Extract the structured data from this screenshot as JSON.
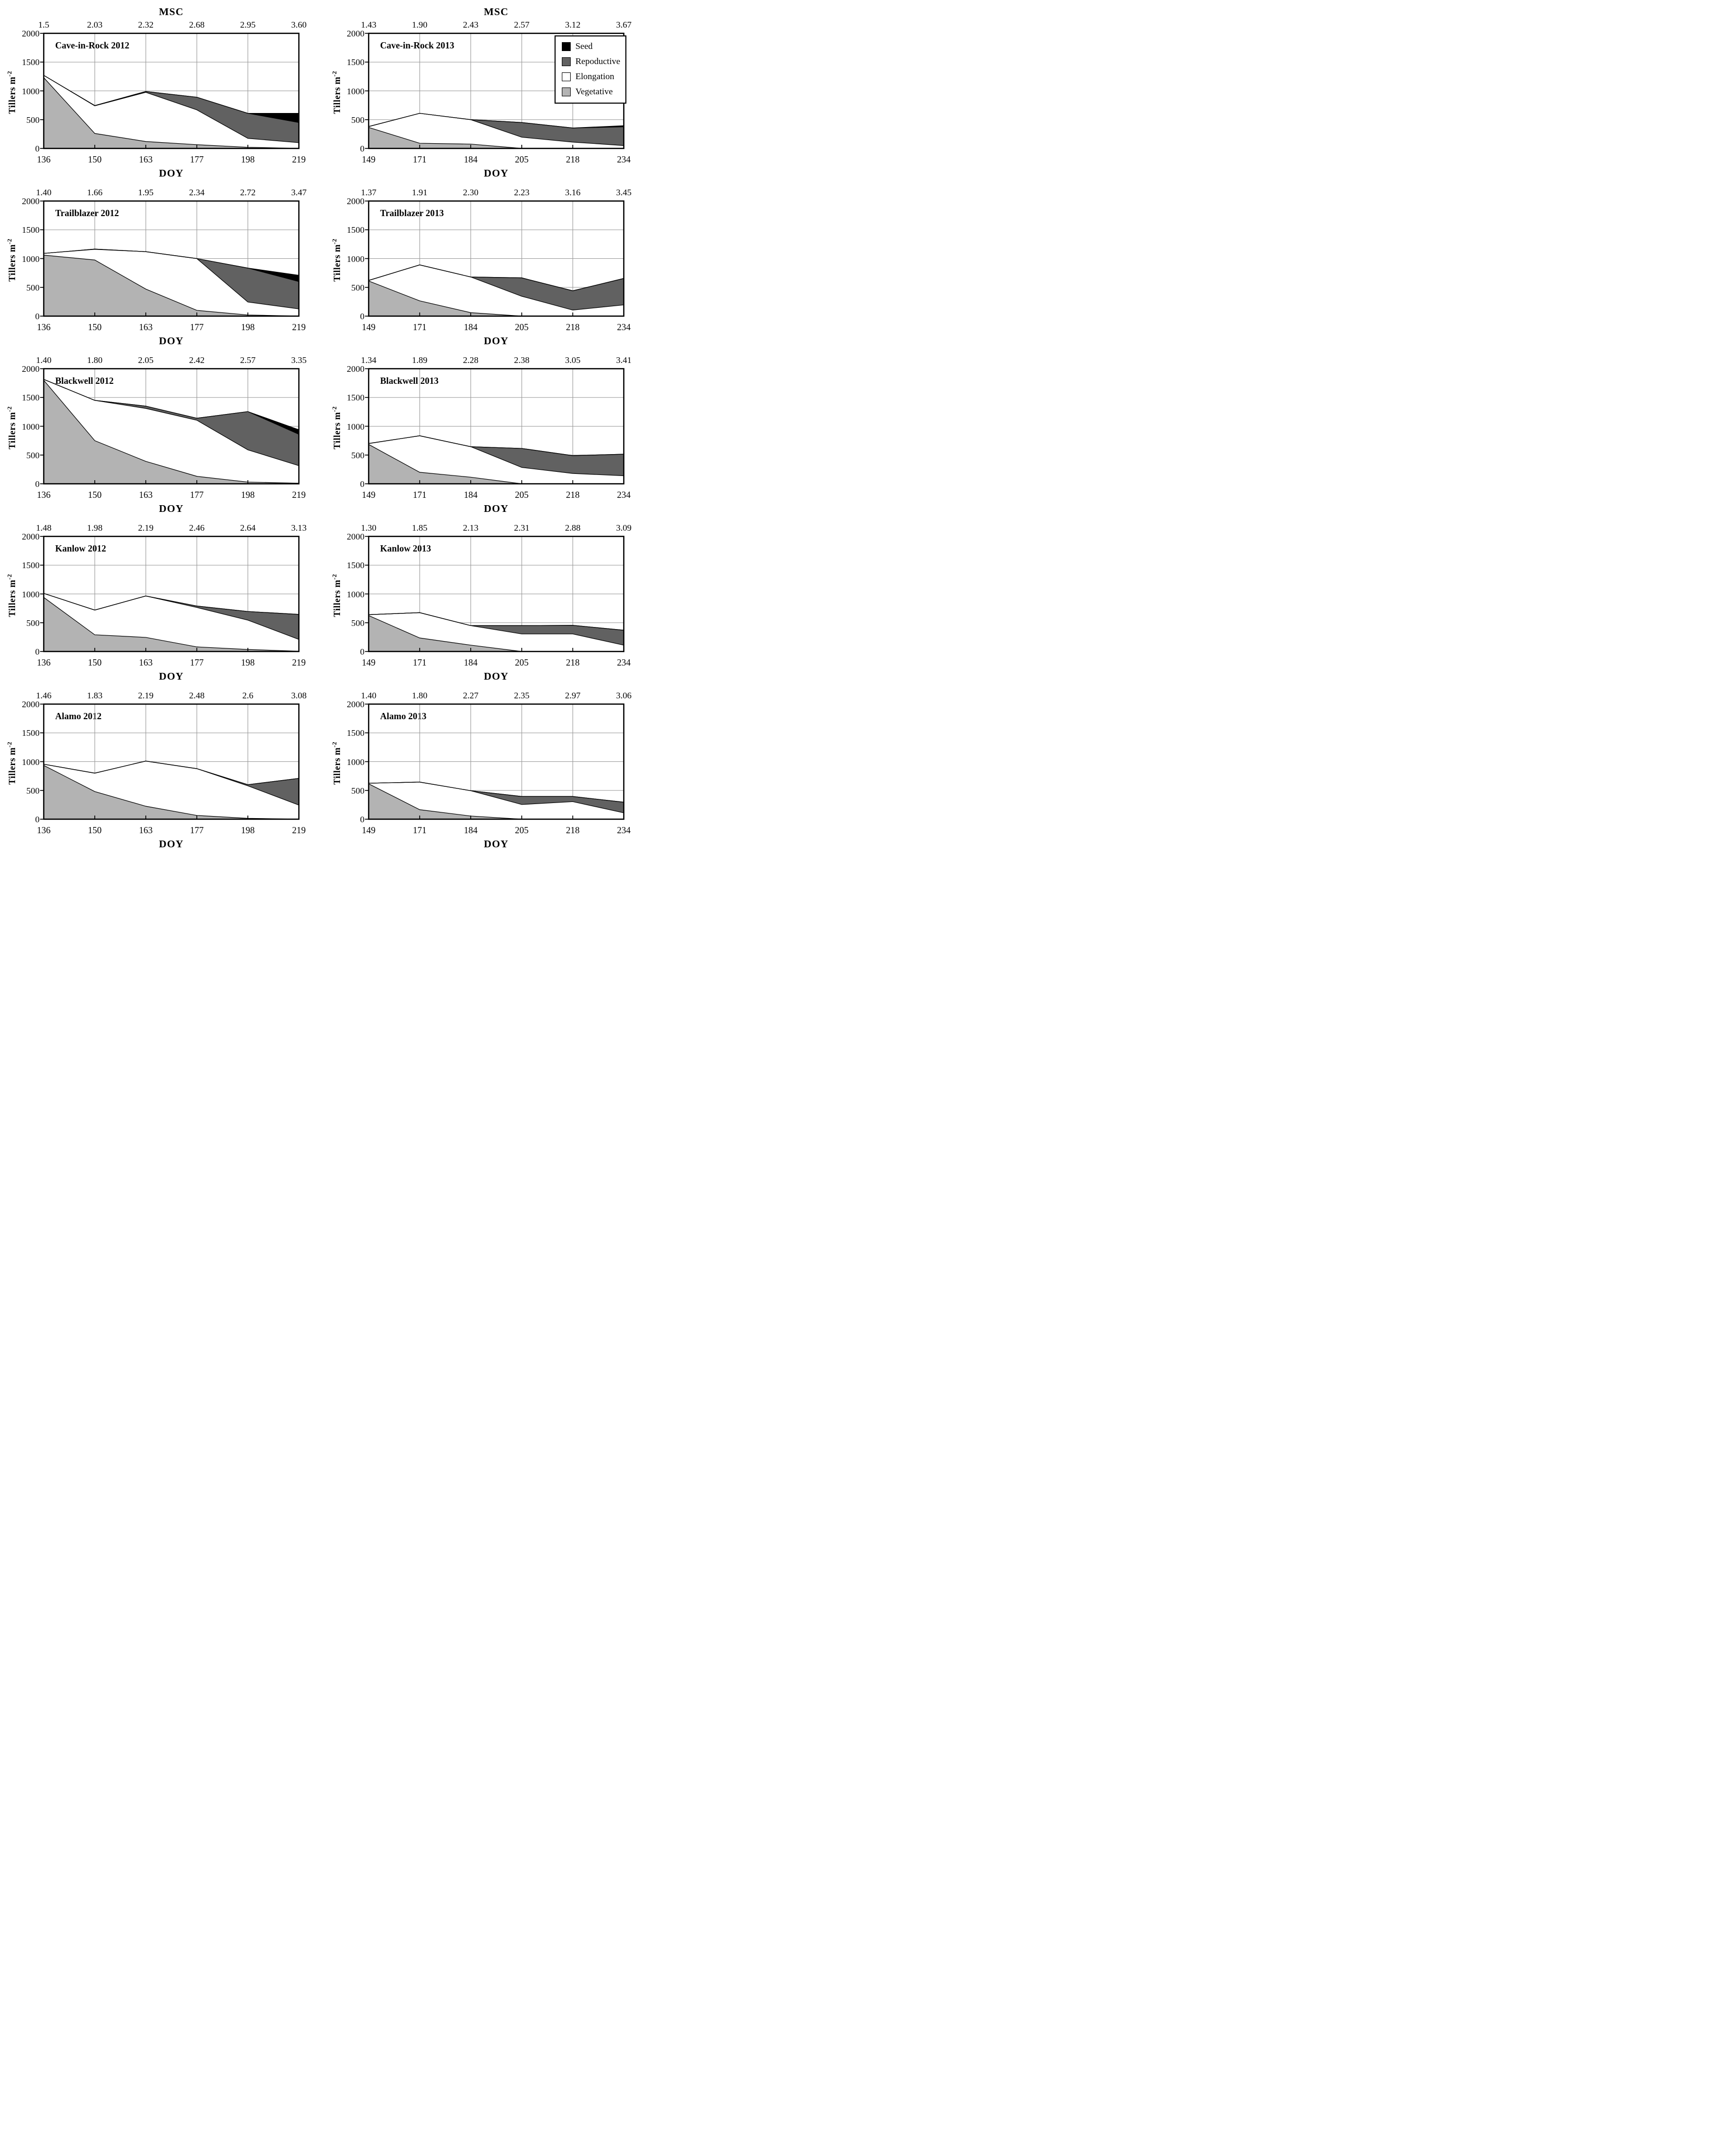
{
  "figure": {
    "msc_axis_title": "MSC",
    "doy_axis_title": "DOY",
    "ylabel_base": "Tillers m",
    "ylabel_sup": "-2",
    "y_ticks": [
      "2000",
      "1500",
      "1000",
      "500",
      "0"
    ],
    "ylim": [
      0,
      2000
    ],
    "grid_color": "#9b9b9b",
    "border_color": "#000000",
    "background": "#ffffff"
  },
  "legend": {
    "items": [
      {
        "label": "Seed",
        "color": "#000000"
      },
      {
        "label": "Repoductive",
        "color": "#616161"
      },
      {
        "label": "Elongation",
        "color": "#ffffff"
      },
      {
        "label": "Vegetative",
        "color": "#b3b3b3"
      }
    ]
  },
  "chart_data": [
    {
      "type": "area",
      "id": "cave-in-rock-2012",
      "title": "Cave-in-Rock 2012",
      "xlabel": "DOY",
      "top_axis_label": "MSC",
      "ylabel": "Tillers m-2",
      "ylim": [
        0,
        2000
      ],
      "grid": true,
      "doy": [
        136,
        150,
        163,
        177,
        198,
        219
      ],
      "msc": [
        "1.5",
        "2.03",
        "2.32",
        "2.68",
        "2.95",
        "3.60"
      ],
      "series_note": "cumulative stacked tops, tillers per m2, bottom-to-top order",
      "series": [
        {
          "name": "Vegetative",
          "cum": [
            1230,
            260,
            120,
            65,
            20,
            0
          ]
        },
        {
          "name": "Elongation",
          "cum": [
            1270,
            740,
            975,
            670,
            175,
            100
          ]
        },
        {
          "name": "Repoductive",
          "cum": [
            1270,
            745,
            990,
            890,
            610,
            450
          ]
        },
        {
          "name": "Seed",
          "cum": [
            1270,
            745,
            990,
            890,
            610,
            610
          ]
        }
      ]
    },
    {
      "type": "area",
      "id": "cave-in-rock-2013",
      "title": "Cave-in-Rock 2013",
      "xlabel": "DOY",
      "top_axis_label": "MSC",
      "ylabel": "Tillers m-2",
      "ylim": [
        0,
        2000
      ],
      "grid": true,
      "doy": [
        149,
        171,
        184,
        205,
        218,
        234
      ],
      "msc": [
        "1.43",
        "1.90",
        "2.43",
        "2.57",
        "3.12",
        "3.67"
      ],
      "series": [
        {
          "name": "Vegetative",
          "cum": [
            365,
            90,
            75,
            0,
            0,
            0
          ]
        },
        {
          "name": "Elongation",
          "cum": [
            380,
            610,
            500,
            195,
            110,
            50
          ]
        },
        {
          "name": "Repoductive",
          "cum": [
            380,
            610,
            500,
            450,
            355,
            375
          ]
        },
        {
          "name": "Seed",
          "cum": [
            380,
            610,
            500,
            450,
            355,
            395
          ]
        }
      ]
    },
    {
      "type": "area",
      "id": "trailblazer-2012",
      "title": "Trailblazer 2012",
      "xlabel": "DOY",
      "top_axis_label": "MSC",
      "ylabel": "Tillers m-2",
      "ylim": [
        0,
        2000
      ],
      "grid": true,
      "doy": [
        136,
        150,
        163,
        177,
        198,
        219
      ],
      "msc": [
        "1.40",
        "1.66",
        "1.95",
        "2.34",
        "2.72",
        "3.47"
      ],
      "series": [
        {
          "name": "Vegetative",
          "cum": [
            1060,
            975,
            470,
            100,
            20,
            0
          ]
        },
        {
          "name": "Elongation",
          "cum": [
            1090,
            1160,
            1120,
            1000,
            245,
            125
          ]
        },
        {
          "name": "Repoductive",
          "cum": [
            1090,
            1165,
            1120,
            1000,
            835,
            600
          ]
        },
        {
          "name": "Seed",
          "cum": [
            1090,
            1165,
            1120,
            1000,
            835,
            710
          ]
        }
      ]
    },
    {
      "type": "area",
      "id": "trailblazer-2013",
      "title": "Trailblazer 2013",
      "xlabel": "DOY",
      "top_axis_label": "MSC",
      "ylabel": "Tillers m-2",
      "ylim": [
        0,
        2000
      ],
      "grid": true,
      "doy": [
        149,
        171,
        184,
        205,
        218,
        234
      ],
      "msc": [
        "1.37",
        "1.91",
        "2.30",
        "2.23",
        "3.16",
        "3.45"
      ],
      "series": [
        {
          "name": "Vegetative",
          "cum": [
            610,
            265,
            60,
            0,
            0,
            0
          ]
        },
        {
          "name": "Elongation",
          "cum": [
            620,
            890,
            680,
            345,
            105,
            195
          ]
        },
        {
          "name": "Repoductive",
          "cum": [
            620,
            890,
            680,
            665,
            440,
            655
          ]
        },
        {
          "name": "Seed",
          "cum": [
            620,
            890,
            680,
            665,
            440,
            655
          ]
        }
      ]
    },
    {
      "type": "area",
      "id": "blackwell-2012",
      "title": "Blackwell 2012",
      "xlabel": "DOY",
      "top_axis_label": "MSC",
      "ylabel": "Tillers m-2",
      "ylim": [
        0,
        2000
      ],
      "grid": true,
      "doy": [
        136,
        150,
        163,
        177,
        198,
        219
      ],
      "msc": [
        "1.40",
        "1.80",
        "2.05",
        "2.42",
        "2.57",
        "3.35"
      ],
      "series": [
        {
          "name": "Vegetative",
          "cum": [
            1800,
            750,
            390,
            130,
            30,
            10
          ]
        },
        {
          "name": "Elongation",
          "cum": [
            1815,
            1450,
            1310,
            1105,
            590,
            315
          ]
        },
        {
          "name": "Repoductive",
          "cum": [
            1815,
            1450,
            1350,
            1140,
            1255,
            860
          ]
        },
        {
          "name": "Seed",
          "cum": [
            1815,
            1450,
            1350,
            1140,
            1255,
            940
          ]
        }
      ]
    },
    {
      "type": "area",
      "id": "blackwell-2013",
      "title": "Blackwell 2013",
      "xlabel": "DOY",
      "top_axis_label": "MSC",
      "ylabel": "Tillers m-2",
      "ylim": [
        0,
        2000
      ],
      "grid": true,
      "doy": [
        149,
        171,
        184,
        205,
        218,
        234
      ],
      "msc": [
        "1.34",
        "1.89",
        "2.28",
        "2.38",
        "3.05",
        "3.41"
      ],
      "series": [
        {
          "name": "Vegetative",
          "cum": [
            685,
            200,
            115,
            0,
            0,
            0
          ]
        },
        {
          "name": "Elongation",
          "cum": [
            700,
            835,
            645,
            285,
            180,
            140
          ]
        },
        {
          "name": "Repoductive",
          "cum": [
            700,
            835,
            645,
            615,
            490,
            515
          ]
        },
        {
          "name": "Seed",
          "cum": [
            700,
            835,
            645,
            615,
            490,
            515
          ]
        }
      ]
    },
    {
      "type": "area",
      "id": "kanlow-2012",
      "title": "Kanlow 2012",
      "xlabel": "DOY",
      "top_axis_label": "MSC",
      "ylabel": "Tillers m-2",
      "ylim": [
        0,
        2000
      ],
      "grid": true,
      "doy": [
        136,
        150,
        163,
        177,
        198,
        219
      ],
      "msc": [
        "1.48",
        "1.98",
        "2.19",
        "2.46",
        "2.64",
        "3.13"
      ],
      "series": [
        {
          "name": "Vegetative",
          "cum": [
            940,
            290,
            245,
            80,
            35,
            5
          ]
        },
        {
          "name": "Elongation",
          "cum": [
            1010,
            720,
            965,
            765,
            545,
            210
          ]
        },
        {
          "name": "Repoductive",
          "cum": [
            1010,
            720,
            965,
            790,
            695,
            645
          ]
        },
        {
          "name": "Seed",
          "cum": [
            1010,
            720,
            965,
            790,
            695,
            645
          ]
        }
      ]
    },
    {
      "type": "area",
      "id": "kanlow-2013",
      "title": "Kanlow 2013",
      "xlabel": "DOY",
      "top_axis_label": "MSC",
      "ylabel": "Tillers m-2",
      "ylim": [
        0,
        2000
      ],
      "grid": true,
      "doy": [
        149,
        171,
        184,
        205,
        218,
        234
      ],
      "msc": [
        "1.30",
        "1.85",
        "2.13",
        "2.31",
        "2.88",
        "3.09"
      ],
      "series": [
        {
          "name": "Vegetative",
          "cum": [
            625,
            235,
            110,
            0,
            0,
            0
          ]
        },
        {
          "name": "Elongation",
          "cum": [
            640,
            675,
            450,
            305,
            305,
            110
          ]
        },
        {
          "name": "Repoductive",
          "cum": [
            640,
            675,
            450,
            450,
            455,
            370
          ]
        },
        {
          "name": "Seed",
          "cum": [
            640,
            675,
            450,
            450,
            455,
            370
          ]
        }
      ]
    },
    {
      "type": "area",
      "id": "alamo-2012",
      "title": "Alamo 2012",
      "xlabel": "DOY",
      "top_axis_label": "MSC",
      "ylabel": "Tillers m-2",
      "ylim": [
        0,
        2000
      ],
      "grid": true,
      "doy": [
        136,
        150,
        163,
        177,
        198,
        219
      ],
      "msc": [
        "1.46",
        "1.83",
        "2.19",
        "2.48",
        "2.6",
        "3.08"
      ],
      "series": [
        {
          "name": "Vegetative",
          "cum": [
            935,
            480,
            225,
            65,
            15,
            0
          ]
        },
        {
          "name": "Elongation",
          "cum": [
            955,
            800,
            1010,
            878,
            580,
            245
          ]
        },
        {
          "name": "Repoductive",
          "cum": [
            955,
            800,
            1010,
            878,
            600,
            710
          ]
        },
        {
          "name": "Seed",
          "cum": [
            955,
            800,
            1010,
            878,
            600,
            710
          ]
        }
      ]
    },
    {
      "type": "area",
      "id": "alamo-2013",
      "title": "Alamo 2013",
      "xlabel": "DOY",
      "top_axis_label": "MSC",
      "ylabel": "Tillers m-2",
      "ylim": [
        0,
        2000
      ],
      "grid": true,
      "doy": [
        149,
        171,
        184,
        205,
        218,
        234
      ],
      "msc": [
        "1.40",
        "1.80",
        "2.27",
        "2.35",
        "2.97",
        "3.06"
      ],
      "series": [
        {
          "name": "Vegetative",
          "cum": [
            615,
            165,
            55,
            0,
            0,
            0
          ]
        },
        {
          "name": "Elongation",
          "cum": [
            625,
            645,
            495,
            255,
            305,
            110
          ]
        },
        {
          "name": "Repoductive",
          "cum": [
            625,
            645,
            495,
            395,
            395,
            295
          ]
        },
        {
          "name": "Seed",
          "cum": [
            625,
            645,
            495,
            395,
            395,
            295
          ]
        }
      ]
    }
  ]
}
